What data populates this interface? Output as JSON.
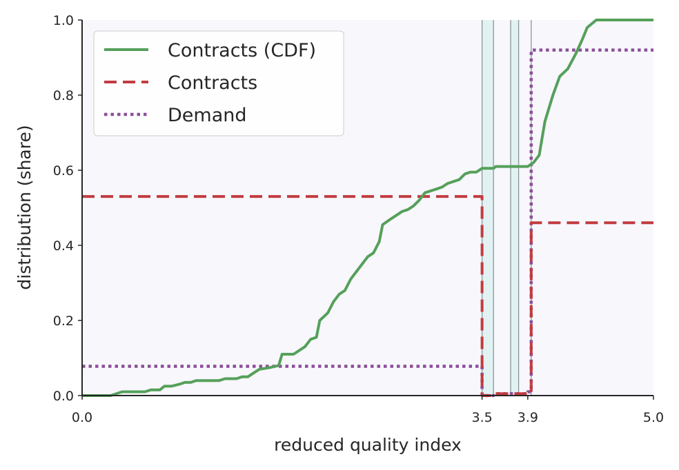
{
  "chart_data": {
    "type": "line",
    "title": "",
    "xlabel": "reduced quality index",
    "ylabel": "distribution (share)",
    "xlim": [
      0.0,
      5.0
    ],
    "ylim": [
      0.0,
      1.0
    ],
    "x_ticks": [
      "0.0",
      "3.5",
      "3.9",
      "5.0"
    ],
    "y_ticks": [
      "0.0",
      "0.2",
      "0.4",
      "0.6",
      "0.8",
      "1.0"
    ],
    "grid": false,
    "legend_position": "upper-left",
    "colors": {
      "cdf": "#55a05a",
      "contracts": "#c23b3f",
      "demand": "#8b4f97",
      "band_fill": "#e2f2f3",
      "band_edge": "#8a9598",
      "plot_bg": "#f7f7fc",
      "axis": "#262626"
    },
    "bands": [
      [
        3.5,
        3.6
      ],
      [
        3.75,
        3.82
      ]
    ],
    "band_lines": [
      3.5,
      3.6,
      3.75,
      3.82,
      3.93
    ],
    "series": [
      {
        "name": "Contracts (CDF)",
        "style": "solid",
        "points": [
          [
            0.0,
            0.0
          ],
          [
            0.25,
            0.0
          ],
          [
            0.35,
            0.01
          ],
          [
            0.55,
            0.01
          ],
          [
            0.6,
            0.015
          ],
          [
            0.68,
            0.015
          ],
          [
            0.72,
            0.025
          ],
          [
            0.78,
            0.025
          ],
          [
            0.85,
            0.03
          ],
          [
            0.9,
            0.035
          ],
          [
            0.95,
            0.035
          ],
          [
            1.0,
            0.04
          ],
          [
            1.2,
            0.04
          ],
          [
            1.25,
            0.045
          ],
          [
            1.35,
            0.045
          ],
          [
            1.4,
            0.05
          ],
          [
            1.45,
            0.05
          ],
          [
            1.5,
            0.06
          ],
          [
            1.55,
            0.07
          ],
          [
            1.65,
            0.075
          ],
          [
            1.72,
            0.08
          ],
          [
            1.75,
            0.11
          ],
          [
            1.85,
            0.11
          ],
          [
            1.9,
            0.12
          ],
          [
            1.95,
            0.13
          ],
          [
            2.0,
            0.15
          ],
          [
            2.05,
            0.155
          ],
          [
            2.08,
            0.2
          ],
          [
            2.15,
            0.22
          ],
          [
            2.2,
            0.25
          ],
          [
            2.25,
            0.27
          ],
          [
            2.3,
            0.28
          ],
          [
            2.35,
            0.31
          ],
          [
            2.45,
            0.35
          ],
          [
            2.5,
            0.37
          ],
          [
            2.55,
            0.38
          ],
          [
            2.6,
            0.41
          ],
          [
            2.63,
            0.455
          ],
          [
            2.7,
            0.47
          ],
          [
            2.75,
            0.48
          ],
          [
            2.8,
            0.49
          ],
          [
            2.85,
            0.495
          ],
          [
            2.9,
            0.505
          ],
          [
            2.95,
            0.52
          ],
          [
            3.0,
            0.54
          ],
          [
            3.1,
            0.55
          ],
          [
            3.15,
            0.555
          ],
          [
            3.2,
            0.565
          ],
          [
            3.3,
            0.575
          ],
          [
            3.35,
            0.59
          ],
          [
            3.4,
            0.595
          ],
          [
            3.45,
            0.595
          ],
          [
            3.5,
            0.605
          ],
          [
            3.6,
            0.605
          ],
          [
            3.62,
            0.61
          ],
          [
            3.9,
            0.61
          ],
          [
            3.95,
            0.62
          ],
          [
            4.0,
            0.64
          ],
          [
            4.05,
            0.73
          ],
          [
            4.12,
            0.8
          ],
          [
            4.18,
            0.85
          ],
          [
            4.25,
            0.87
          ],
          [
            4.32,
            0.91
          ],
          [
            4.38,
            0.95
          ],
          [
            4.42,
            0.98
          ],
          [
            4.5,
            1.0
          ],
          [
            5.0,
            1.0
          ]
        ]
      },
      {
        "name": "Contracts",
        "style": "dashed",
        "points": [
          [
            0.0,
            0.53
          ],
          [
            3.5,
            0.53
          ],
          [
            3.5,
            0.0
          ],
          [
            3.6,
            0.0
          ],
          [
            3.6,
            0.005
          ],
          [
            3.9,
            0.005
          ],
          [
            3.93,
            0.005
          ],
          [
            3.93,
            0.46
          ],
          [
            5.0,
            0.46
          ]
        ]
      },
      {
        "name": "Demand",
        "style": "dotted",
        "points": [
          [
            0.0,
            0.078
          ],
          [
            3.5,
            0.078
          ],
          [
            3.5,
            0.0
          ],
          [
            3.6,
            0.0
          ],
          [
            3.6,
            0.005
          ],
          [
            3.9,
            0.005
          ],
          [
            3.9,
            0.01
          ],
          [
            3.93,
            0.01
          ],
          [
            3.93,
            0.92
          ],
          [
            5.0,
            0.92
          ]
        ]
      }
    ]
  }
}
